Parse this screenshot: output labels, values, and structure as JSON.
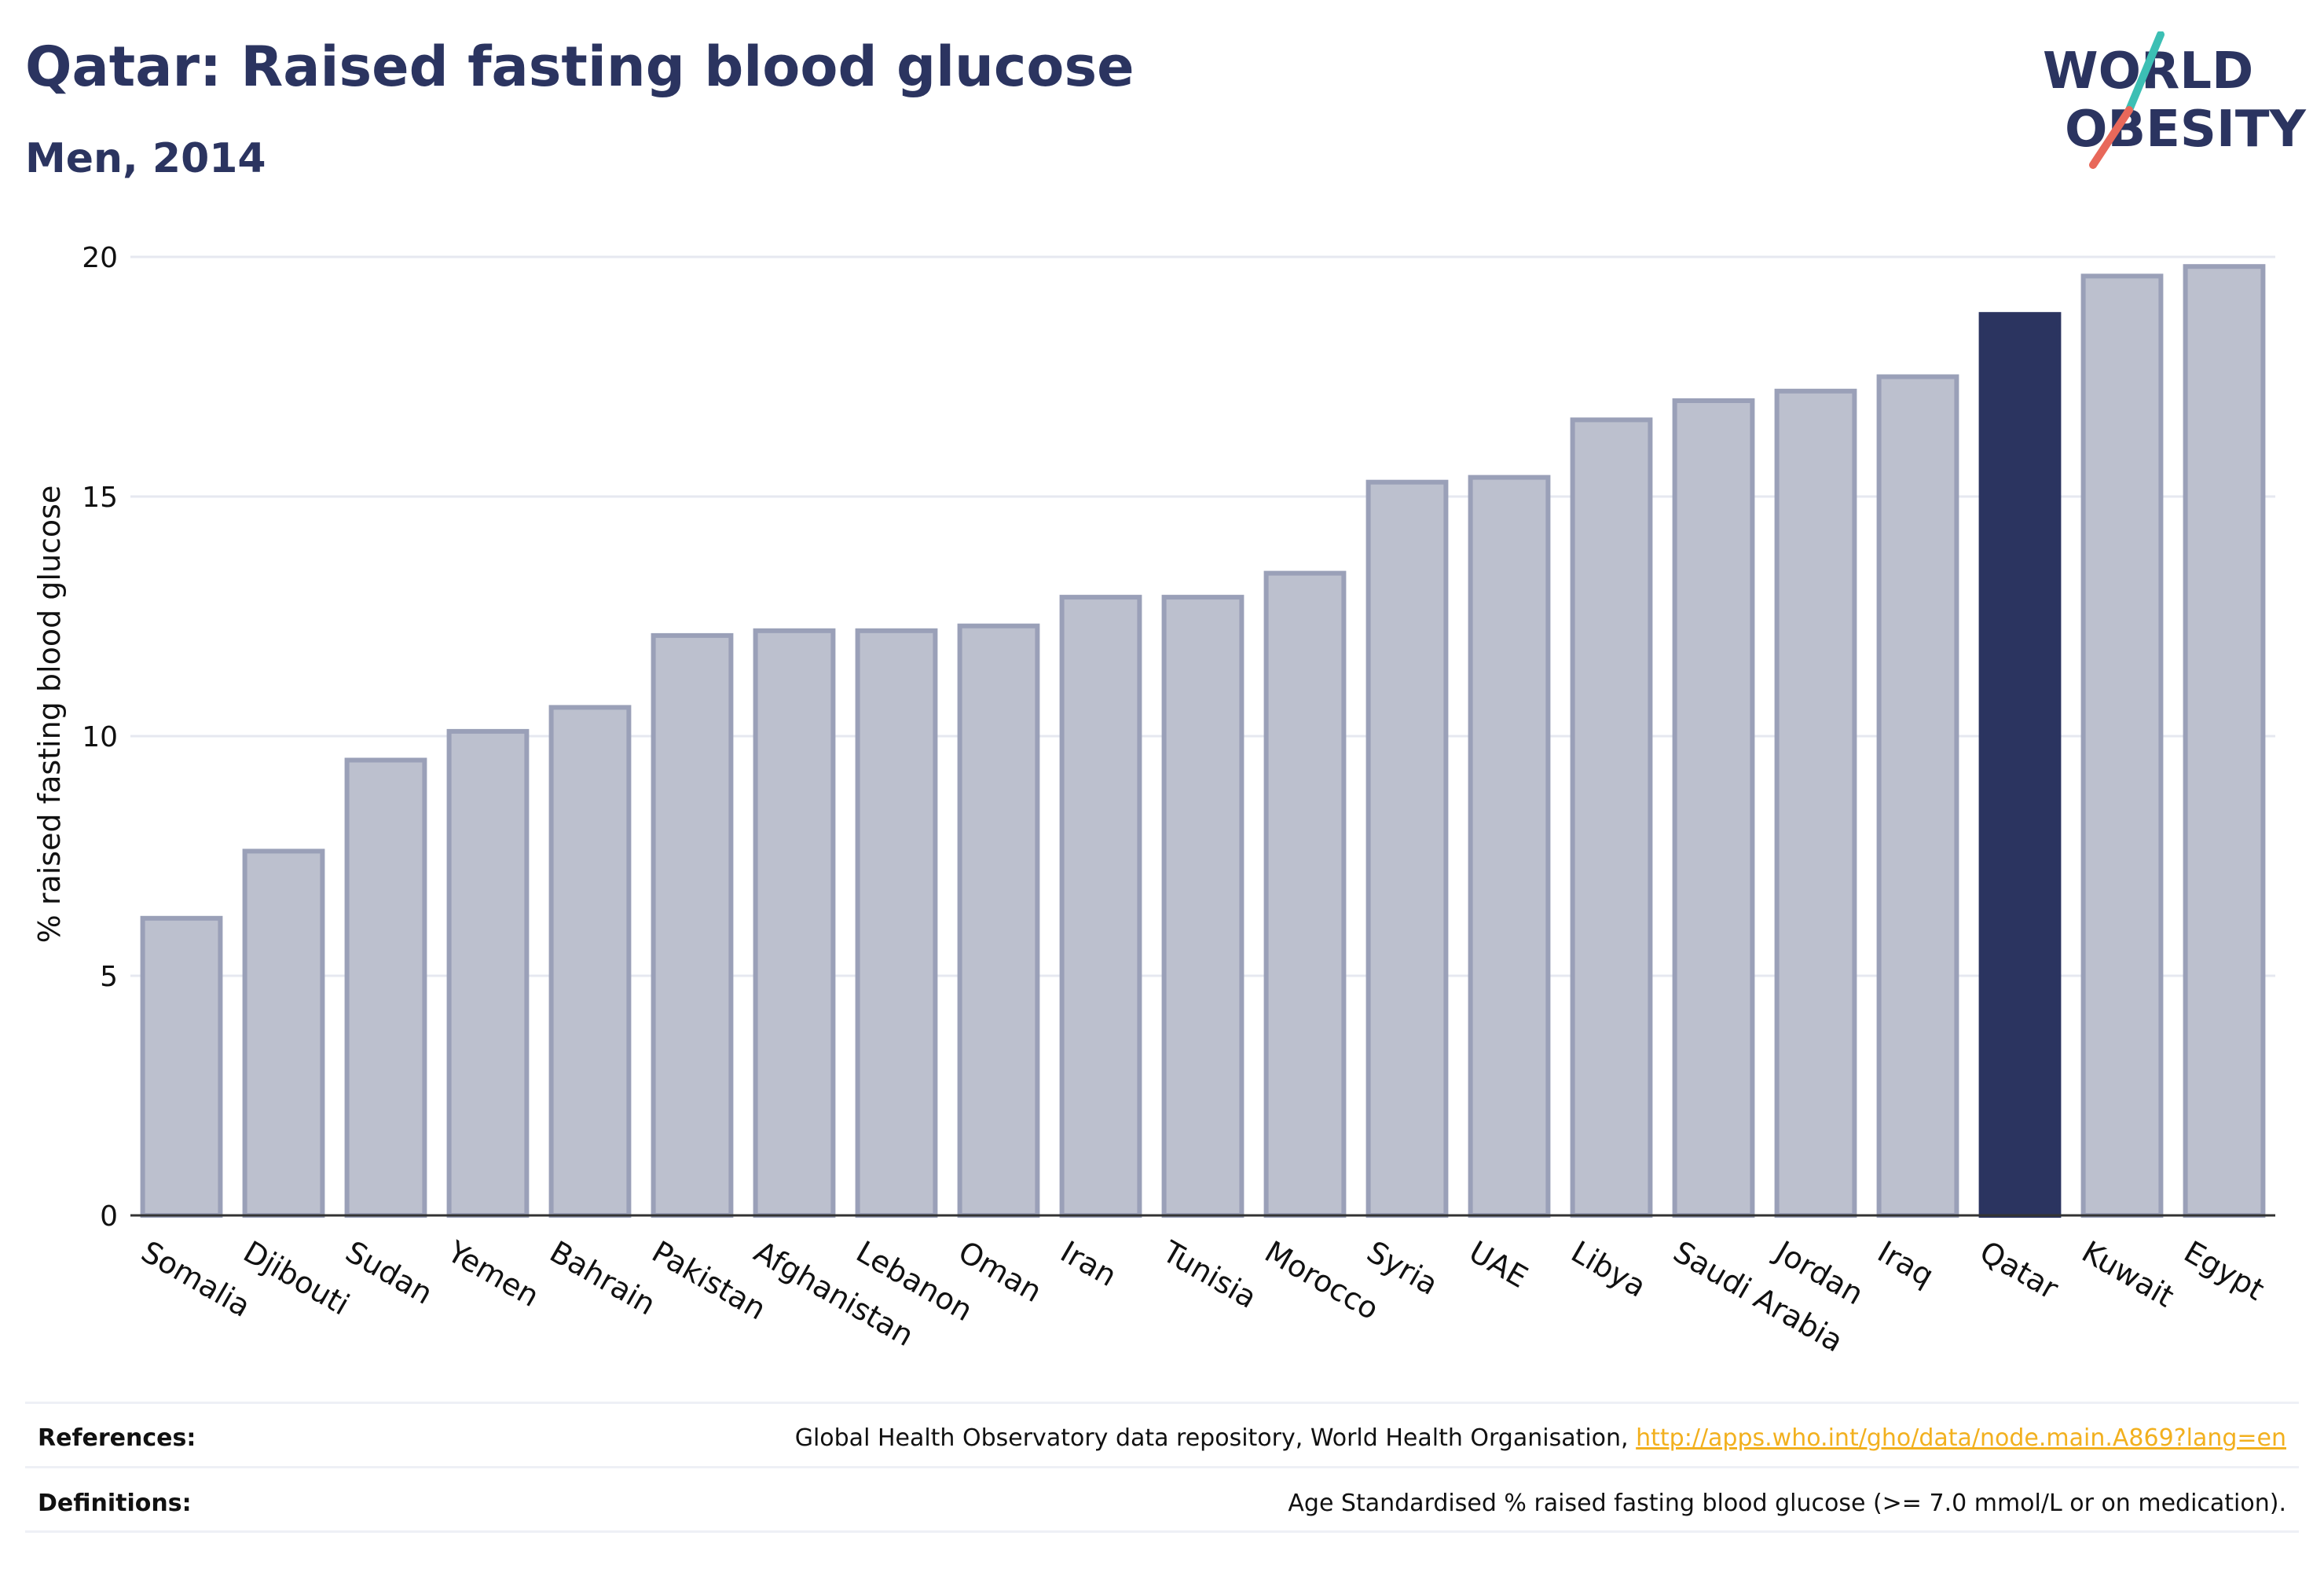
{
  "header": {
    "title": "Qatar: Raised fasting blood glucose",
    "subtitle": "Men, 2014"
  },
  "logo": {
    "line1": "WORLD",
    "line2": "OBESITY",
    "accent_colors": [
      "#3cbfb4",
      "#e8685a"
    ]
  },
  "chart_data": {
    "type": "bar",
    "title": "Qatar: Raised fasting blood glucose",
    "subtitle": "Men, 2014",
    "xlabel": "",
    "ylabel": "% raised fasting blood glucose",
    "ylim": [
      0,
      20
    ],
    "yticks": [
      0,
      5,
      10,
      15,
      20
    ],
    "grid": true,
    "highlight": "Qatar",
    "colors": {
      "bar": "#bcc0ce",
      "bar_border": "#9aa0b8",
      "highlight": "#2b3460"
    },
    "categories": [
      "Somalia",
      "Djibouti",
      "Sudan",
      "Yemen",
      "Bahrain",
      "Pakistan",
      "Afghanistan",
      "Lebanon",
      "Oman",
      "Iran",
      "Tunisia",
      "Morocco",
      "Syria",
      "UAE",
      "Libya",
      "Saudi Arabia",
      "Jordan",
      "Iraq",
      "Qatar",
      "Kuwait",
      "Egypt"
    ],
    "values": [
      6.2,
      7.6,
      9.5,
      10.1,
      10.6,
      12.1,
      12.2,
      12.2,
      12.3,
      12.9,
      12.9,
      13.4,
      15.3,
      15.4,
      16.6,
      17.0,
      17.2,
      17.5,
      18.8,
      19.6,
      19.8
    ]
  },
  "footer": {
    "references_label": "References:",
    "references_text": "Global Health Observatory data repository, World Health Organisation,",
    "references_link": "http://apps.who.int/gho/data/node.main.A869?lang=en",
    "definitions_label": "Definitions:",
    "definitions_text": "Age Standardised % raised fasting blood glucose (>= 7.0 mmol/L or on medication)."
  }
}
